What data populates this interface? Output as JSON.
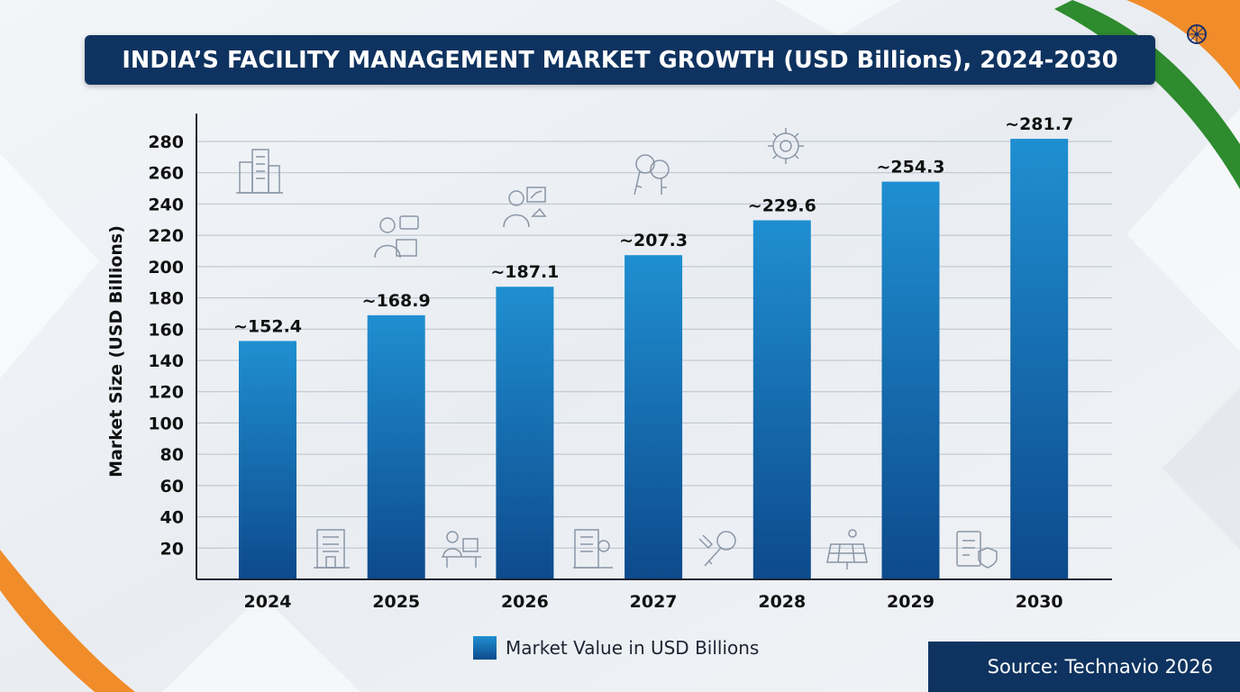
{
  "chart_data": {
    "type": "bar",
    "title": "INDIA’S FACILITY MANAGEMENT MARKET GROWTH (USD Billions), 2024-2030",
    "xlabel": "",
    "ylabel": "Market Size (USD Billions)",
    "categories": [
      "2024",
      "2025",
      "2026",
      "2027",
      "2028",
      "2029",
      "2030"
    ],
    "values": [
      152.4,
      168.9,
      187.1,
      207.3,
      229.6,
      254.3,
      281.7
    ],
    "data_labels": [
      "~152.4",
      "~168.9",
      "~187.1",
      "~207.3",
      "~229.6",
      "~254.3",
      "~281.7"
    ],
    "yticks": [
      20,
      40,
      60,
      80,
      100,
      120,
      140,
      160,
      180,
      200,
      220,
      240,
      260,
      280
    ],
    "ylim": [
      0,
      300
    ],
    "grid": true,
    "legend": {
      "position": "bottom-center",
      "entries": [
        "Market Value in USD Billions"
      ]
    },
    "bar_color": {
      "top": "#1f8fd1",
      "bottom": "#0d4a8c"
    }
  },
  "source": "Source: Technavio 2026",
  "colors": {
    "title_bg": "#0f3360",
    "saffron": "#f08c2a",
    "green": "#2e8b2e",
    "navy": "#0f3360"
  },
  "icons": [
    "buildings-icon",
    "office-worker-icon",
    "growth-icon",
    "keys-icon",
    "gear-icon",
    "building-icon",
    "desk-worker-icon",
    "building-gear-icon",
    "wrench-key-icon",
    "solar-panel-icon",
    "checklist-shield-icon",
    "ashoka-chakra-icon"
  ]
}
